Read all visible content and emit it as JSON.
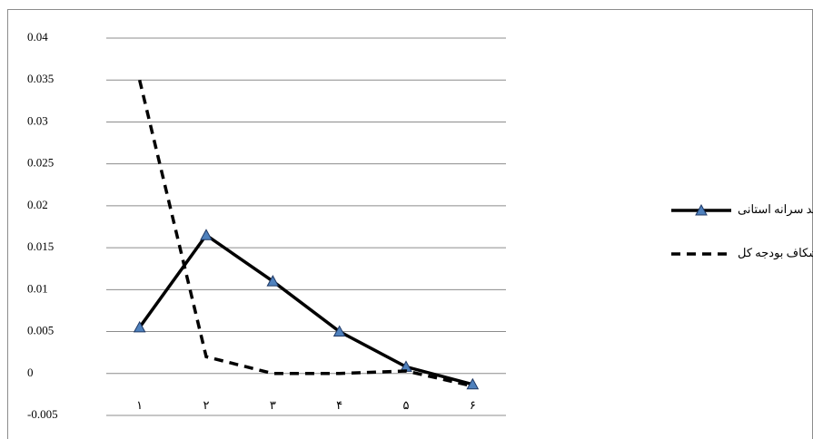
{
  "chart_data": {
    "type": "line",
    "categories": [
      "۱",
      "۲",
      "۳",
      "۴",
      "۵",
      "۶"
    ],
    "series": [
      {
        "name": "شکاف درآمد سرانه استانی",
        "color": "#000000",
        "dash": "solid",
        "marker": "triangle",
        "values": [
          0.0055,
          0.0165,
          0.011,
          0.005,
          0.0008,
          -0.0013
        ]
      },
      {
        "name": "شکاف بودجه کل",
        "color": "#000000",
        "dash": "dashed",
        "marker": "none",
        "values": [
          0.035,
          0.002,
          0,
          0,
          0.0003,
          -0.0015
        ]
      }
    ],
    "ylim": [
      -0.005,
      0.04
    ],
    "yticks": [
      -0.005,
      0,
      0.005,
      0.01,
      0.015,
      0.02,
      0.025,
      0.03,
      0.035,
      0.04
    ],
    "grid": true,
    "legend": "right"
  }
}
